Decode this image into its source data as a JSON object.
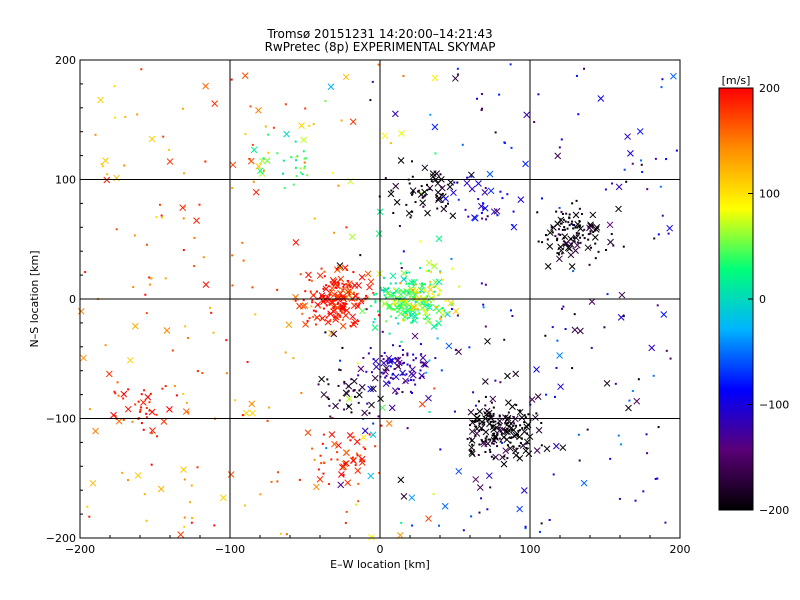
{
  "chart_data": {
    "type": "scatter",
    "title": "Tromsø 20151231 14:20:00–14:21:43",
    "subtitle": "RwPretec (8p) EXPERIMENTAL SKYMAP",
    "xlabel": "E–W location [km]",
    "ylabel": "N–S location [km]",
    "xlim": [
      -200,
      200
    ],
    "ylim": [
      -200,
      200
    ],
    "x_ticks": [
      "−200",
      "−100",
      "0",
      "100",
      "200"
    ],
    "y_ticks": [
      "−200",
      "−100",
      "0",
      "100",
      "200"
    ],
    "grid": true,
    "colorbar": {
      "label": "[m/s]",
      "range": [
        -200,
        200
      ],
      "ticks": [
        "200",
        "100",
        "0",
        "−100",
        "−200"
      ],
      "colors": [
        "#000000",
        "#5a0078",
        "#0000ff",
        "#00b4ff",
        "#00ff78",
        "#ffff00",
        "#ff8c00",
        "#ff0000"
      ]
    },
    "markers": [
      "x",
      "dot"
    ],
    "clusters": [
      {
        "x": -30,
        "y": 0,
        "velocity": 190,
        "count": 180
      },
      {
        "x": 20,
        "y": 0,
        "velocity": 30,
        "count": 180
      },
      {
        "x": 30,
        "y": 5,
        "velocity": 100,
        "count": 60
      },
      {
        "x": 10,
        "y": -60,
        "velocity": -120,
        "count": 90
      },
      {
        "x": -20,
        "y": -75,
        "velocity": -180,
        "count": 40
      },
      {
        "x": 80,
        "y": -110,
        "velocity": -200,
        "count": 180
      },
      {
        "x": 130,
        "y": 55,
        "velocity": -200,
        "count": 110
      },
      {
        "x": 30,
        "y": 90,
        "velocity": -200,
        "count": 60
      },
      {
        "x": -60,
        "y": 115,
        "velocity": 40,
        "count": 30
      },
      {
        "x": -20,
        "y": -130,
        "velocity": 180,
        "count": 50
      },
      {
        "x": -160,
        "y": -90,
        "velocity": 190,
        "count": 40
      },
      {
        "x": 70,
        "y": 80,
        "velocity": -100,
        "count": 30
      }
    ]
  }
}
